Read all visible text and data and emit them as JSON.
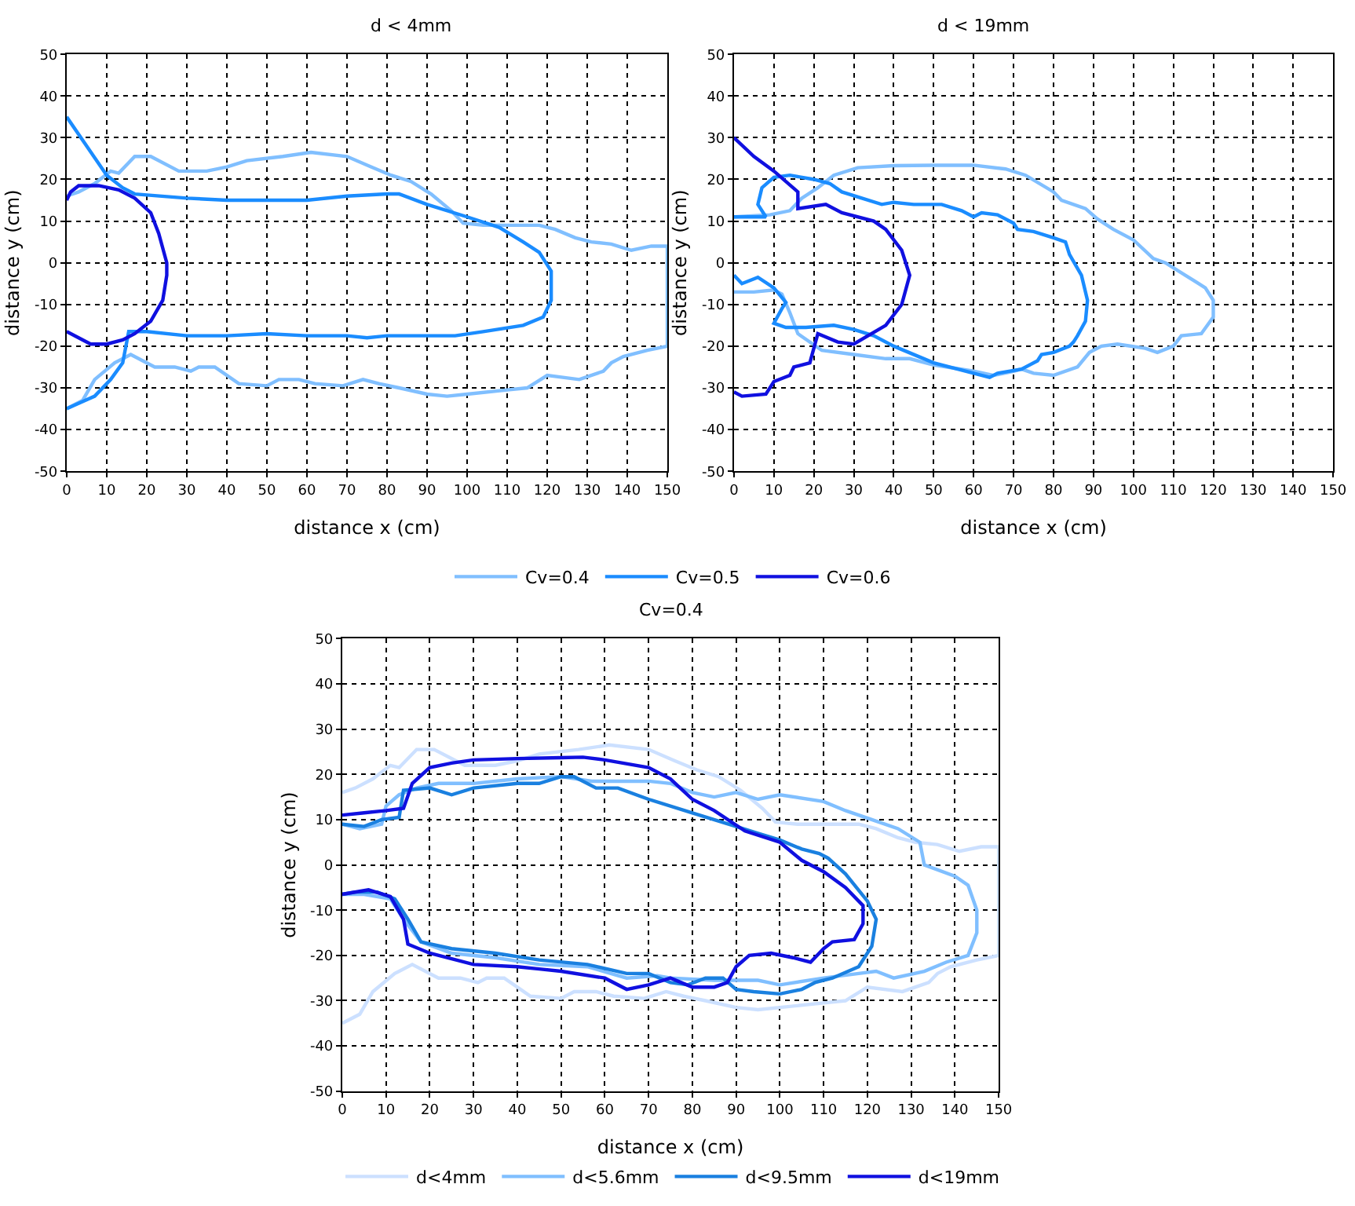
{
  "chart_data": [
    {
      "type": "line",
      "title": "d < 4mm",
      "xlabel": "distance x (cm)",
      "ylabel": "distance y (cm)",
      "xlim": [
        0,
        150
      ],
      "ylim": [
        -50,
        50
      ],
      "xticks": [
        0,
        10,
        20,
        30,
        40,
        50,
        60,
        70,
        80,
        90,
        100,
        110,
        120,
        130,
        140,
        150
      ],
      "yticks": [
        -50,
        -40,
        -30,
        -20,
        -10,
        0,
        10,
        20,
        30,
        40,
        50
      ],
      "grid": true,
      "legend": "bottom",
      "series": [
        {
          "name": "Cv=0.4",
          "color": "#80bfff",
          "x": [
            0,
            4,
            7,
            12,
            16,
            22,
            27,
            31,
            33,
            37,
            43,
            50,
            53,
            58,
            62,
            69,
            74,
            78,
            83,
            90,
            95,
            100,
            110,
            115,
            120,
            128,
            134,
            136,
            139,
            145,
            150,
            150,
            146,
            141,
            136,
            131,
            127,
            122,
            118,
            110,
            104,
            99,
            96,
            91,
            86,
            81,
            76,
            70,
            61,
            54,
            45,
            40,
            35,
            28,
            21,
            17,
            13,
            11,
            7,
            3,
            0
          ],
          "values": [
            -35,
            -33,
            -28,
            -24,
            -22,
            -25,
            -25,
            -26,
            -25,
            -25,
            -29,
            -29.5,
            -28,
            -28,
            -29,
            -29.5,
            -28,
            -29,
            -30,
            -31.5,
            -32,
            -31.5,
            -30.5,
            -30,
            -27,
            -28,
            -26,
            -24,
            -22.5,
            -21,
            -20,
            4,
            4,
            3,
            4.5,
            5,
            6,
            8,
            9,
            9,
            9,
            9.5,
            12.5,
            16.5,
            19.5,
            21,
            23,
            25.5,
            26.5,
            25.5,
            24.5,
            23,
            22,
            22,
            25.5,
            25.5,
            21.5,
            22,
            19,
            17,
            16
          ]
        },
        {
          "name": "Cv=0.5",
          "color": "#1a8cff",
          "x": [
            0,
            5,
            10,
            14,
            17,
            30,
            40,
            50,
            60,
            70,
            80,
            83,
            90,
            100,
            108,
            114,
            118,
            121,
            121,
            119,
            114,
            104,
            97,
            90,
            80,
            75,
            70,
            60,
            50,
            40,
            30,
            20,
            15.5,
            14,
            11,
            7,
            0
          ],
          "values": [
            35,
            28,
            21,
            18,
            16.5,
            15.5,
            15,
            15,
            15,
            16,
            16.5,
            16.5,
            14,
            11,
            8.5,
            5,
            2.5,
            -2,
            -9,
            -13,
            -15,
            -16.5,
            -17.5,
            -17.5,
            -17.5,
            -18,
            -17.5,
            -17.5,
            -17,
            -17.5,
            -17.5,
            -16.5,
            -16.5,
            -24,
            -28,
            -32,
            -35
          ]
        },
        {
          "name": "Cv=0.6",
          "color": "#1010e0",
          "x": [
            0,
            1,
            3,
            8,
            13,
            17,
            21,
            23,
            25,
            25,
            24,
            21,
            17,
            14,
            10,
            6,
            3,
            0
          ],
          "values": [
            15,
            17,
            18.5,
            18.5,
            17.5,
            15.5,
            12,
            7,
            0,
            -3,
            -9,
            -14,
            -17,
            -18.5,
            -19.5,
            -19.5,
            -18,
            -16.5
          ]
        }
      ]
    },
    {
      "type": "line",
      "title": "d < 19mm",
      "xlabel": "distance x (cm)",
      "ylabel": "distance y (cm)",
      "xlim": [
        0,
        150
      ],
      "ylim": [
        -50,
        50
      ],
      "xticks": [
        0,
        10,
        20,
        30,
        40,
        50,
        60,
        70,
        80,
        90,
        100,
        110,
        120,
        130,
        140,
        150
      ],
      "yticks": [
        -50,
        -40,
        -30,
        -20,
        -10,
        0,
        10,
        20,
        30,
        40,
        50
      ],
      "grid": true,
      "legend": false,
      "series": [
        {
          "color": "#80bfff",
          "x": [
            0,
            9,
            14,
            17,
            21,
            25,
            31,
            40,
            50,
            60,
            68,
            73,
            80,
            82,
            88,
            91,
            95,
            100,
            105,
            108,
            113,
            118,
            120,
            120,
            117,
            112,
            110,
            106,
            103,
            96,
            92,
            89,
            86,
            80,
            75,
            72,
            70,
            65,
            60,
            50,
            44,
            38,
            30,
            22,
            16,
            14,
            12,
            10,
            5,
            0
          ],
          "values": [
            11,
            11.5,
            12.5,
            15.5,
            18,
            21,
            22.8,
            23.3,
            23.4,
            23.4,
            22.5,
            21,
            17,
            15,
            13,
            10.5,
            8,
            5.5,
            1,
            0,
            -3,
            -6,
            -9,
            -13,
            -17,
            -17.5,
            -20,
            -21.5,
            -20.5,
            -19.5,
            -20,
            -21.5,
            -25,
            -27,
            -26.5,
            -25.5,
            -26,
            -27,
            -26,
            -24.5,
            -23,
            -23,
            -22,
            -21,
            -17,
            -12,
            -7.5,
            -6.5,
            -7,
            -7
          ]
        },
        {
          "color": "#1a8cff",
          "x": [
            0,
            8,
            6,
            7,
            10,
            14,
            20,
            24,
            27,
            32,
            37,
            40,
            45,
            52,
            57,
            60,
            62,
            66,
            70,
            71,
            75,
            80,
            83,
            84,
            87,
            88.5,
            88,
            86,
            85,
            84,
            80,
            77,
            76,
            72,
            66,
            64,
            60,
            50,
            40,
            35,
            30,
            25,
            18,
            13,
            10,
            12,
            13,
            10,
            6,
            2,
            0
          ],
          "values": [
            11,
            11,
            14,
            18,
            20.5,
            21,
            20,
            19,
            17,
            15.5,
            14,
            14.5,
            14,
            14,
            12.5,
            11,
            12,
            11.5,
            9.5,
            8,
            7.5,
            6,
            5,
            2,
            -3,
            -9,
            -14,
            -17.5,
            -19,
            -20,
            -21.5,
            -22,
            -23.5,
            -25.5,
            -26.5,
            -27.5,
            -26.5,
            -24,
            -20,
            -17.5,
            -16,
            -15,
            -15.5,
            -15.5,
            -14.5,
            -11,
            -9.5,
            -6,
            -3.5,
            -5,
            -3
          ]
        },
        {
          "color": "#1010e0",
          "x": [
            0,
            5,
            10,
            16,
            16,
            23,
            27,
            35,
            38,
            42,
            44,
            42,
            38,
            30,
            26,
            21,
            19,
            15,
            14,
            10,
            8,
            2,
            0
          ],
          "values": [
            30,
            25.5,
            22,
            17,
            13,
            14,
            12,
            10,
            8,
            3,
            -3,
            -10,
            -15,
            -19.5,
            -19,
            -17,
            -24,
            -25,
            -27,
            -28.5,
            -31.5,
            -32,
            -31
          ]
        }
      ]
    },
    {
      "type": "line",
      "title": "Cv=0.4",
      "xlabel": "distance x (cm)",
      "ylabel": "distance y (cm)",
      "xlim": [
        0,
        150
      ],
      "ylim": [
        -50,
        50
      ],
      "xticks": [
        0,
        10,
        20,
        30,
        40,
        50,
        60,
        70,
        80,
        90,
        100,
        110,
        120,
        130,
        140,
        150
      ],
      "yticks": [
        -50,
        -40,
        -30,
        -20,
        -10,
        0,
        10,
        20,
        30,
        40,
        50
      ],
      "grid": true,
      "legend": "bottom",
      "series": [
        {
          "name": "d<4mm",
          "color": "#cce0ff",
          "x": [
            0,
            4,
            7,
            12,
            16,
            22,
            27,
            31,
            33,
            37,
            43,
            50,
            53,
            58,
            62,
            69,
            74,
            78,
            83,
            90,
            95,
            100,
            110,
            115,
            120,
            128,
            134,
            136,
            139,
            145,
            150,
            150,
            146,
            141,
            136,
            131,
            127,
            122,
            118,
            110,
            104,
            99,
            96,
            91,
            86,
            81,
            76,
            70,
            61,
            54,
            45,
            40,
            35,
            28,
            21,
            17,
            13,
            11,
            7,
            3,
            0
          ],
          "values": [
            -35,
            -33,
            -28,
            -24,
            -22,
            -25,
            -25,
            -26,
            -25,
            -25,
            -29,
            -29.5,
            -28,
            -28,
            -29,
            -29.5,
            -28,
            -29,
            -30,
            -31.5,
            -32,
            -31.5,
            -30.5,
            -30,
            -27,
            -28,
            -26,
            -24,
            -22.5,
            -21,
            -20,
            4,
            4,
            3,
            4.5,
            5,
            6,
            8,
            9,
            9,
            9,
            9.5,
            12.5,
            16.5,
            19.5,
            21,
            23,
            25.5,
            26.5,
            25.5,
            24.5,
            23,
            22,
            22,
            25.5,
            25.5,
            21.5,
            22,
            19,
            17,
            16
          ]
        },
        {
          "name": "d<5.6mm",
          "color": "#80bfff",
          "x": [
            0,
            4,
            9,
            10,
            13,
            17,
            22,
            30,
            40,
            50,
            57,
            60,
            70,
            75,
            80,
            85,
            90,
            95,
            100,
            110,
            115,
            121,
            127,
            132,
            133,
            140,
            143,
            145,
            145,
            143,
            138,
            133,
            126,
            122,
            118,
            110,
            100,
            95,
            85,
            75,
            72,
            65,
            56,
            45,
            35,
            25,
            18,
            14,
            11,
            5,
            0
          ],
          "values": [
            9,
            8,
            9,
            13,
            15.5,
            17,
            18,
            18,
            19,
            19.5,
            18.5,
            18.5,
            18.5,
            18,
            16,
            15,
            16,
            14.5,
            15.5,
            14,
            12,
            10,
            8,
            5,
            0,
            -2.5,
            -4.5,
            -10,
            -15,
            -20,
            -21.5,
            -23.5,
            -25,
            -23.5,
            -24,
            -25,
            -26.5,
            -25.5,
            -25.5,
            -25,
            -24.5,
            -25,
            -22.5,
            -22,
            -20.5,
            -19.5,
            -17,
            -12,
            -7.5,
            -6.5,
            -6.5
          ]
        },
        {
          "name": "d<9.5mm",
          "color": "#1a80e0",
          "x": [
            0,
            5,
            9,
            13,
            14,
            20,
            25,
            30,
            40,
            45,
            50,
            53,
            58,
            63,
            70,
            80,
            90,
            95,
            100,
            105,
            109,
            111,
            115,
            120,
            122,
            121,
            118,
            112,
            108,
            105,
            100,
            94,
            90,
            87,
            83,
            79,
            75,
            70,
            65,
            56,
            45,
            35,
            25,
            18,
            15,
            12,
            8,
            3,
            0
          ],
          "values": [
            9,
            8.5,
            10,
            10.5,
            16.5,
            17,
            15.5,
            17,
            18,
            18,
            19.5,
            19.5,
            17,
            17,
            14.5,
            11.5,
            8.5,
            7,
            5.5,
            3.5,
            2.5,
            1.5,
            -2,
            -8,
            -12,
            -18,
            -22.5,
            -25,
            -26,
            -27.5,
            -28.5,
            -28,
            -27.5,
            -25,
            -25,
            -26.5,
            -26,
            -24,
            -24,
            -22,
            -21,
            -19.5,
            -18.5,
            -17,
            -12,
            -7.5,
            -6,
            -6,
            -6.5
          ]
        },
        {
          "name": "d<19mm",
          "color": "#1010e0",
          "x": [
            0,
            5,
            10,
            14,
            16,
            20,
            25,
            30,
            40,
            50,
            55,
            60,
            70,
            75,
            80,
            85,
            92,
            100,
            105,
            110,
            115,
            119,
            119,
            117,
            112,
            110,
            107,
            103,
            98,
            93,
            90,
            88,
            85,
            80,
            75,
            70,
            65,
            60,
            50,
            45,
            40,
            30,
            20,
            15,
            14,
            11,
            6,
            0
          ],
          "values": [
            11,
            11.5,
            12,
            12.5,
            18,
            21.5,
            22.5,
            23.2,
            23.5,
            23.7,
            23.8,
            23.2,
            21.5,
            19,
            14.5,
            12,
            7.5,
            5,
            1,
            -1.5,
            -5,
            -9,
            -13,
            -16.5,
            -17,
            -18.5,
            -21.5,
            -20.5,
            -19.5,
            -20,
            -22.5,
            -26,
            -27,
            -27,
            -25,
            -26.5,
            -27.5,
            -25,
            -23.5,
            -23,
            -22.5,
            -22,
            -19.5,
            -17.5,
            -12,
            -7,
            -5.5,
            -6.5
          ]
        }
      ]
    }
  ]
}
